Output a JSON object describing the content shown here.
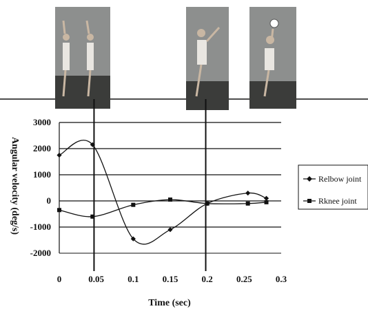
{
  "chart_data": {
    "type": "line",
    "title": "",
    "xlabel": "Time (sec)",
    "ylabel": "Angular velocity (deg/s)",
    "xlim": [
      0,
      0.3
    ],
    "ylim": [
      -2000,
      3000
    ],
    "x_ticks": [
      "0",
      "0.05",
      "0.1",
      "0.15",
      "0.2",
      "0.25",
      "0.3"
    ],
    "y_ticks": [
      "3000",
      "2000",
      "1000",
      "0",
      "-1000",
      "-2000"
    ],
    "grid": "horizontal",
    "legend_position": "right",
    "phase_markers_x": [
      0.047,
      0.198
    ],
    "series": [
      {
        "name": "R elbow joint",
        "marker": "diamond",
        "color": "#111111",
        "x": [
          0,
          0.045,
          0.1,
          0.15,
          0.2,
          0.255,
          0.28
        ],
        "values": [
          1750,
          2150,
          -1450,
          -1100,
          -100,
          300,
          100
        ]
      },
      {
        "name": "R knee joint",
        "marker": "square",
        "color": "#111111",
        "x": [
          0,
          0.045,
          0.1,
          0.15,
          0.2,
          0.255,
          0.28
        ],
        "values": [
          -350,
          -600,
          -150,
          50,
          -100,
          -100,
          -50
        ]
      }
    ]
  },
  "legend": {
    "elbow_label": "Relbow joint",
    "knee_label": "Rknee joint"
  }
}
